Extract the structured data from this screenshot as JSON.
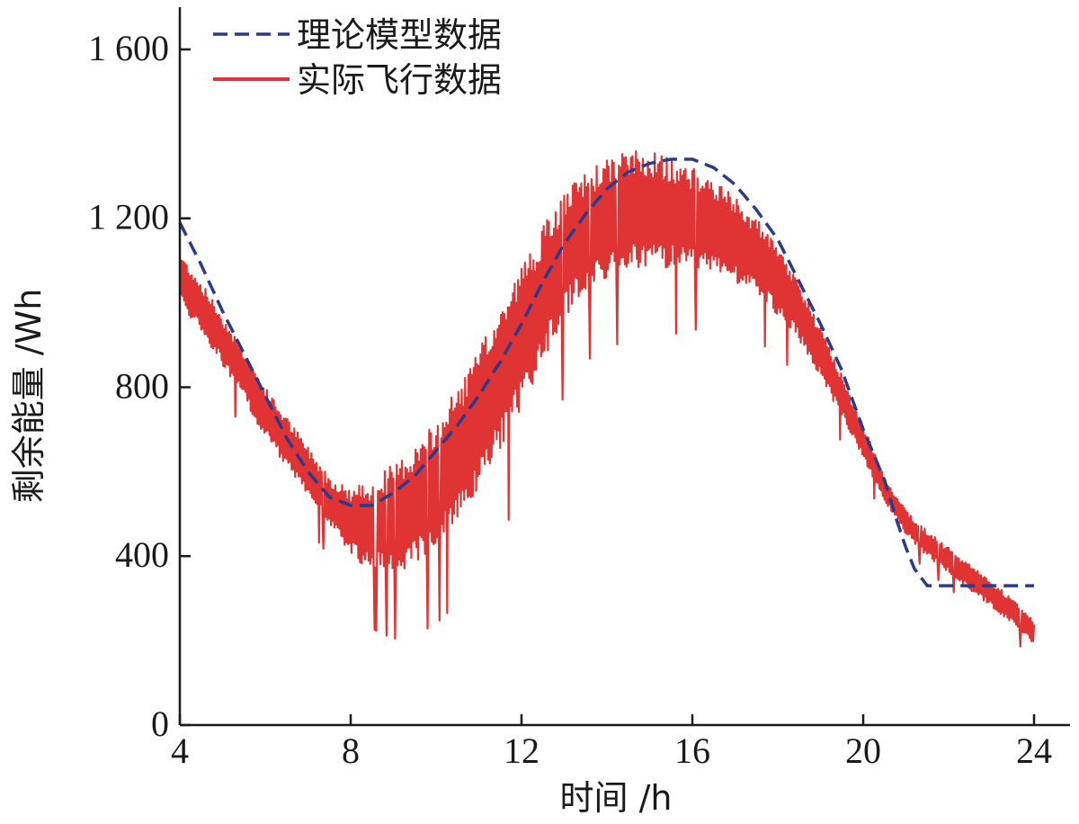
{
  "chart_data": {
    "type": "line",
    "xlabel": "时间 /h",
    "ylabel": "剩余能量 /Wh",
    "xlim": [
      4,
      24
    ],
    "ylim": [
      0,
      1700
    ],
    "xticks": [
      4,
      8,
      12,
      16,
      20,
      24
    ],
    "xtick_labels": [
      "4",
      "8",
      "12",
      "16",
      "20",
      "24"
    ],
    "yticks": [
      0,
      400,
      800,
      1200,
      1600
    ],
    "ytick_labels": [
      "0",
      "400",
      "800",
      "1 200",
      "1 600"
    ],
    "grid": false,
    "legend_position": "top-left",
    "series": [
      {
        "name": "理论模型数据",
        "style": "dashed",
        "color": "#2a3a8c",
        "x": [
          4.0,
          4.5,
          5.0,
          5.5,
          6.0,
          6.5,
          7.0,
          7.5,
          8.0,
          8.5,
          9.0,
          9.5,
          10.0,
          10.5,
          11.0,
          11.5,
          12.0,
          12.5,
          13.0,
          13.5,
          14.0,
          14.5,
          15.0,
          15.5,
          16.0,
          16.5,
          17.0,
          17.5,
          18.0,
          18.5,
          19.0,
          19.5,
          20.0,
          20.5,
          20.8,
          21.0,
          21.2,
          21.5,
          22.0,
          23.0,
          24.0
        ],
        "y": [
          1190,
          1090,
          980,
          880,
          780,
          680,
          600,
          540,
          520,
          520,
          550,
          590,
          650,
          710,
          780,
          860,
          950,
          1050,
          1140,
          1210,
          1270,
          1310,
          1330,
          1340,
          1340,
          1320,
          1280,
          1220,
          1150,
          1050,
          950,
          840,
          700,
          580,
          480,
          420,
          370,
          330,
          330,
          330,
          330
        ]
      },
      {
        "name": "实际飞行数据",
        "style": "solid",
        "color": "#e03333",
        "x": [
          4.0,
          4.5,
          5.0,
          5.5,
          6.0,
          6.5,
          7.0,
          7.5,
          8.0,
          8.5,
          9.0,
          9.5,
          10.0,
          10.5,
          11.0,
          11.5,
          12.0,
          12.5,
          13.0,
          13.5,
          14.0,
          14.5,
          15.0,
          15.5,
          16.0,
          16.5,
          17.0,
          17.5,
          18.0,
          18.5,
          19.0,
          19.5,
          20.0,
          20.5,
          21.0,
          21.5,
          22.0,
          22.5,
          23.0,
          23.5,
          24.0
        ],
        "y": [
          1060,
          990,
          910,
          830,
          740,
          670,
          600,
          530,
          480,
          470,
          490,
          520,
          570,
          640,
          720,
          820,
          920,
          1020,
          1110,
          1170,
          1200,
          1220,
          1220,
          1210,
          1200,
          1180,
          1150,
          1110,
          1050,
          980,
          880,
          780,
          670,
          560,
          480,
          430,
          390,
          350,
          310,
          270,
          220
        ],
        "fluctuation_amplitude": [
          60,
          60,
          60,
          60,
          60,
          60,
          60,
          60,
          80,
          110,
          130,
          140,
          150,
          160,
          170,
          170,
          170,
          160,
          150,
          140,
          140,
          140,
          140,
          130,
          120,
          110,
          100,
          90,
          80,
          70,
          60,
          50,
          40,
          30,
          30,
          30,
          30,
          30,
          30,
          30,
          30
        ]
      }
    ]
  }
}
